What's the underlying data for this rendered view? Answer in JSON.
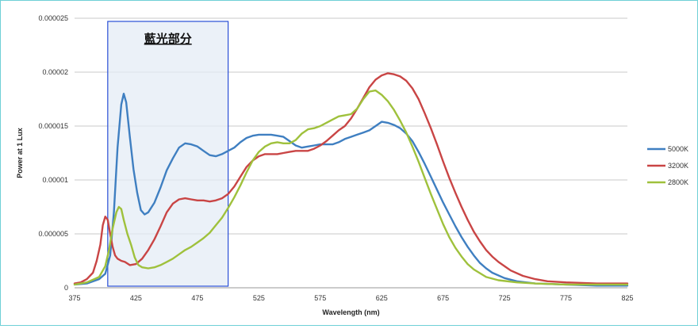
{
  "chart_data": {
    "type": "line",
    "title": "",
    "xlabel": "Wavelength (nm)",
    "ylabel": "Power at 1 Lux",
    "xlim": [
      375,
      825
    ],
    "ylim": [
      0,
      2.5e-05
    ],
    "x_ticks": [
      "375",
      "425",
      "475",
      "525",
      "575",
      "625",
      "675",
      "725",
      "775",
      "825"
    ],
    "y_ticks": [
      "0",
      "0.000005",
      "0.00001",
      "0.000015",
      "0.00002",
      "0.000025"
    ],
    "grid": "horizontal",
    "legend": "right",
    "annotation": {
      "text": "藍光部分",
      "x_range": [
        402,
        500
      ],
      "fill": "#e4ecf6",
      "stroke": "#2a4fd6"
    },
    "series": [
      {
        "name": "5000K",
        "color": "#3f7fc1",
        "points": [
          [
            375,
            3e-07
          ],
          [
            385,
            4e-07
          ],
          [
            395,
            8e-07
          ],
          [
            400,
            1.3e-06
          ],
          [
            404,
            3e-06
          ],
          [
            407,
            7e-06
          ],
          [
            410,
            1.3e-05
          ],
          [
            413,
            1.7e-05
          ],
          [
            415,
            1.8e-05
          ],
          [
            417,
            1.72e-05
          ],
          [
            420,
            1.4e-05
          ],
          [
            423,
            1.1e-05
          ],
          [
            426,
            8.8e-06
          ],
          [
            429,
            7.2e-06
          ],
          [
            432,
            6.8e-06
          ],
          [
            435,
            7e-06
          ],
          [
            440,
            7.9e-06
          ],
          [
            445,
            9.3e-06
          ],
          [
            450,
            1.09e-05
          ],
          [
            455,
            1.2e-05
          ],
          [
            460,
            1.3e-05
          ],
          [
            465,
            1.34e-05
          ],
          [
            470,
            1.33e-05
          ],
          [
            475,
            1.31e-05
          ],
          [
            480,
            1.27e-05
          ],
          [
            485,
            1.23e-05
          ],
          [
            490,
            1.22e-05
          ],
          [
            495,
            1.24e-05
          ],
          [
            500,
            1.27e-05
          ],
          [
            505,
            1.3e-05
          ],
          [
            510,
            1.35e-05
          ],
          [
            515,
            1.39e-05
          ],
          [
            520,
            1.41e-05
          ],
          [
            525,
            1.42e-05
          ],
          [
            530,
            1.42e-05
          ],
          [
            535,
            1.42e-05
          ],
          [
            540,
            1.41e-05
          ],
          [
            545,
            1.4e-05
          ],
          [
            550,
            1.36e-05
          ],
          [
            555,
            1.32e-05
          ],
          [
            560,
            1.3e-05
          ],
          [
            565,
            1.31e-05
          ],
          [
            570,
            1.32e-05
          ],
          [
            575,
            1.33e-05
          ],
          [
            580,
            1.33e-05
          ],
          [
            585,
            1.33e-05
          ],
          [
            590,
            1.35e-05
          ],
          [
            595,
            1.38e-05
          ],
          [
            600,
            1.4e-05
          ],
          [
            605,
            1.42e-05
          ],
          [
            610,
            1.44e-05
          ],
          [
            615,
            1.46e-05
          ],
          [
            620,
            1.5e-05
          ],
          [
            625,
            1.54e-05
          ],
          [
            630,
            1.53e-05
          ],
          [
            635,
            1.51e-05
          ],
          [
            640,
            1.48e-05
          ],
          [
            645,
            1.43e-05
          ],
          [
            650,
            1.36e-05
          ],
          [
            655,
            1.26e-05
          ],
          [
            660,
            1.15e-05
          ],
          [
            665,
            1.03e-05
          ],
          [
            670,
            9.1e-06
          ],
          [
            675,
            7.9e-06
          ],
          [
            680,
            6.8e-06
          ],
          [
            685,
            5.7e-06
          ],
          [
            690,
            4.7e-06
          ],
          [
            695,
            3.8e-06
          ],
          [
            700,
            3e-06
          ],
          [
            705,
            2.3e-06
          ],
          [
            710,
            1.8e-06
          ],
          [
            715,
            1.4e-06
          ],
          [
            725,
            9e-07
          ],
          [
            735,
            6e-07
          ],
          [
            750,
            4e-07
          ],
          [
            775,
            3e-07
          ],
          [
            800,
            2e-07
          ],
          [
            825,
            2e-07
          ]
        ]
      },
      {
        "name": "3200K",
        "color": "#c94545",
        "points": [
          [
            375,
            4e-07
          ],
          [
            380,
            5e-07
          ],
          [
            385,
            8e-07
          ],
          [
            390,
            1.4e-06
          ],
          [
            393,
            2.5e-06
          ],
          [
            396,
            4e-06
          ],
          [
            398,
            5.8e-06
          ],
          [
            400,
            6.6e-06
          ],
          [
            402,
            6.3e-06
          ],
          [
            404,
            5e-06
          ],
          [
            406,
            3.8e-06
          ],
          [
            408,
            3e-06
          ],
          [
            410,
            2.7e-06
          ],
          [
            413,
            2.5e-06
          ],
          [
            416,
            2.4e-06
          ],
          [
            420,
            2.1e-06
          ],
          [
            425,
            2.2e-06
          ],
          [
            430,
            2.7e-06
          ],
          [
            435,
            3.5e-06
          ],
          [
            440,
            4.5e-06
          ],
          [
            445,
            5.7e-06
          ],
          [
            450,
            7e-06
          ],
          [
            455,
            7.8e-06
          ],
          [
            460,
            8.2e-06
          ],
          [
            465,
            8.3e-06
          ],
          [
            470,
            8.2e-06
          ],
          [
            475,
            8.1e-06
          ],
          [
            480,
            8.1e-06
          ],
          [
            485,
            8e-06
          ],
          [
            490,
            8.1e-06
          ],
          [
            495,
            8.3e-06
          ],
          [
            500,
            8.7e-06
          ],
          [
            505,
            9.4e-06
          ],
          [
            510,
            1.03e-05
          ],
          [
            515,
            1.12e-05
          ],
          [
            520,
            1.18e-05
          ],
          [
            525,
            1.22e-05
          ],
          [
            530,
            1.24e-05
          ],
          [
            535,
            1.24e-05
          ],
          [
            540,
            1.24e-05
          ],
          [
            545,
            1.25e-05
          ],
          [
            550,
            1.26e-05
          ],
          [
            555,
            1.27e-05
          ],
          [
            560,
            1.27e-05
          ],
          [
            565,
            1.27e-05
          ],
          [
            570,
            1.29e-05
          ],
          [
            575,
            1.32e-05
          ],
          [
            580,
            1.36e-05
          ],
          [
            585,
            1.41e-05
          ],
          [
            590,
            1.46e-05
          ],
          [
            595,
            1.5e-05
          ],
          [
            600,
            1.57e-05
          ],
          [
            605,
            1.66e-05
          ],
          [
            610,
            1.76e-05
          ],
          [
            615,
            1.86e-05
          ],
          [
            620,
            1.93e-05
          ],
          [
            625,
            1.97e-05
          ],
          [
            630,
            1.99e-05
          ],
          [
            635,
            1.98e-05
          ],
          [
            640,
            1.96e-05
          ],
          [
            645,
            1.92e-05
          ],
          [
            650,
            1.85e-05
          ],
          [
            655,
            1.75e-05
          ],
          [
            660,
            1.62e-05
          ],
          [
            665,
            1.48e-05
          ],
          [
            670,
            1.33e-05
          ],
          [
            675,
            1.17e-05
          ],
          [
            680,
            1.02e-05
          ],
          [
            685,
            8.8e-06
          ],
          [
            690,
            7.5e-06
          ],
          [
            695,
            6.3e-06
          ],
          [
            700,
            5.2e-06
          ],
          [
            705,
            4.3e-06
          ],
          [
            710,
            3.5e-06
          ],
          [
            715,
            2.9e-06
          ],
          [
            720,
            2.4e-06
          ],
          [
            730,
            1.6e-06
          ],
          [
            740,
            1.1e-06
          ],
          [
            750,
            8e-07
          ],
          [
            760,
            6e-07
          ],
          [
            775,
            5e-07
          ],
          [
            800,
            4e-07
          ],
          [
            825,
            4e-07
          ]
        ]
      },
      {
        "name": "2800K",
        "color": "#9fc13c",
        "points": [
          [
            375,
            3e-07
          ],
          [
            385,
            5e-07
          ],
          [
            395,
            1e-06
          ],
          [
            400,
            2e-06
          ],
          [
            403,
            3.5e-06
          ],
          [
            406,
            5.5e-06
          ],
          [
            409,
            7e-06
          ],
          [
            411,
            7.5e-06
          ],
          [
            413,
            7.3e-06
          ],
          [
            415,
            6.3e-06
          ],
          [
            418,
            5e-06
          ],
          [
            421,
            4e-06
          ],
          [
            424,
            2.8e-06
          ],
          [
            427,
            2.1e-06
          ],
          [
            430,
            1.9e-06
          ],
          [
            435,
            1.8e-06
          ],
          [
            440,
            1.9e-06
          ],
          [
            445,
            2.1e-06
          ],
          [
            450,
            2.4e-06
          ],
          [
            455,
            2.7e-06
          ],
          [
            460,
            3.1e-06
          ],
          [
            465,
            3.5e-06
          ],
          [
            470,
            3.8e-06
          ],
          [
            475,
            4.2e-06
          ],
          [
            480,
            4.6e-06
          ],
          [
            485,
            5.1e-06
          ],
          [
            490,
            5.8e-06
          ],
          [
            495,
            6.5e-06
          ],
          [
            500,
            7.4e-06
          ],
          [
            505,
            8.4e-06
          ],
          [
            510,
            9.5e-06
          ],
          [
            515,
            1.07e-05
          ],
          [
            520,
            1.18e-05
          ],
          [
            525,
            1.26e-05
          ],
          [
            530,
            1.31e-05
          ],
          [
            535,
            1.34e-05
          ],
          [
            540,
            1.35e-05
          ],
          [
            545,
            1.34e-05
          ],
          [
            550,
            1.34e-05
          ],
          [
            555,
            1.37e-05
          ],
          [
            560,
            1.43e-05
          ],
          [
            565,
            1.47e-05
          ],
          [
            570,
            1.48e-05
          ],
          [
            575,
            1.5e-05
          ],
          [
            580,
            1.53e-05
          ],
          [
            585,
            1.56e-05
          ],
          [
            590,
            1.59e-05
          ],
          [
            595,
            1.6e-05
          ],
          [
            600,
            1.61e-05
          ],
          [
            605,
            1.66e-05
          ],
          [
            610,
            1.75e-05
          ],
          [
            615,
            1.82e-05
          ],
          [
            620,
            1.83e-05
          ],
          [
            625,
            1.79e-05
          ],
          [
            630,
            1.73e-05
          ],
          [
            635,
            1.65e-05
          ],
          [
            640,
            1.55e-05
          ],
          [
            645,
            1.44e-05
          ],
          [
            650,
            1.31e-05
          ],
          [
            655,
            1.17e-05
          ],
          [
            660,
            1.02e-05
          ],
          [
            665,
            8.7e-06
          ],
          [
            670,
            7.3e-06
          ],
          [
            675,
            5.9e-06
          ],
          [
            680,
            4.7e-06
          ],
          [
            685,
            3.7e-06
          ],
          [
            690,
            2.9e-06
          ],
          [
            695,
            2.2e-06
          ],
          [
            700,
            1.7e-06
          ],
          [
            710,
            1e-06
          ],
          [
            720,
            7e-07
          ],
          [
            735,
            5e-07
          ],
          [
            750,
            4e-07
          ],
          [
            775,
            3e-07
          ],
          [
            800,
            3e-07
          ],
          [
            825,
            3e-07
          ]
        ]
      }
    ]
  }
}
